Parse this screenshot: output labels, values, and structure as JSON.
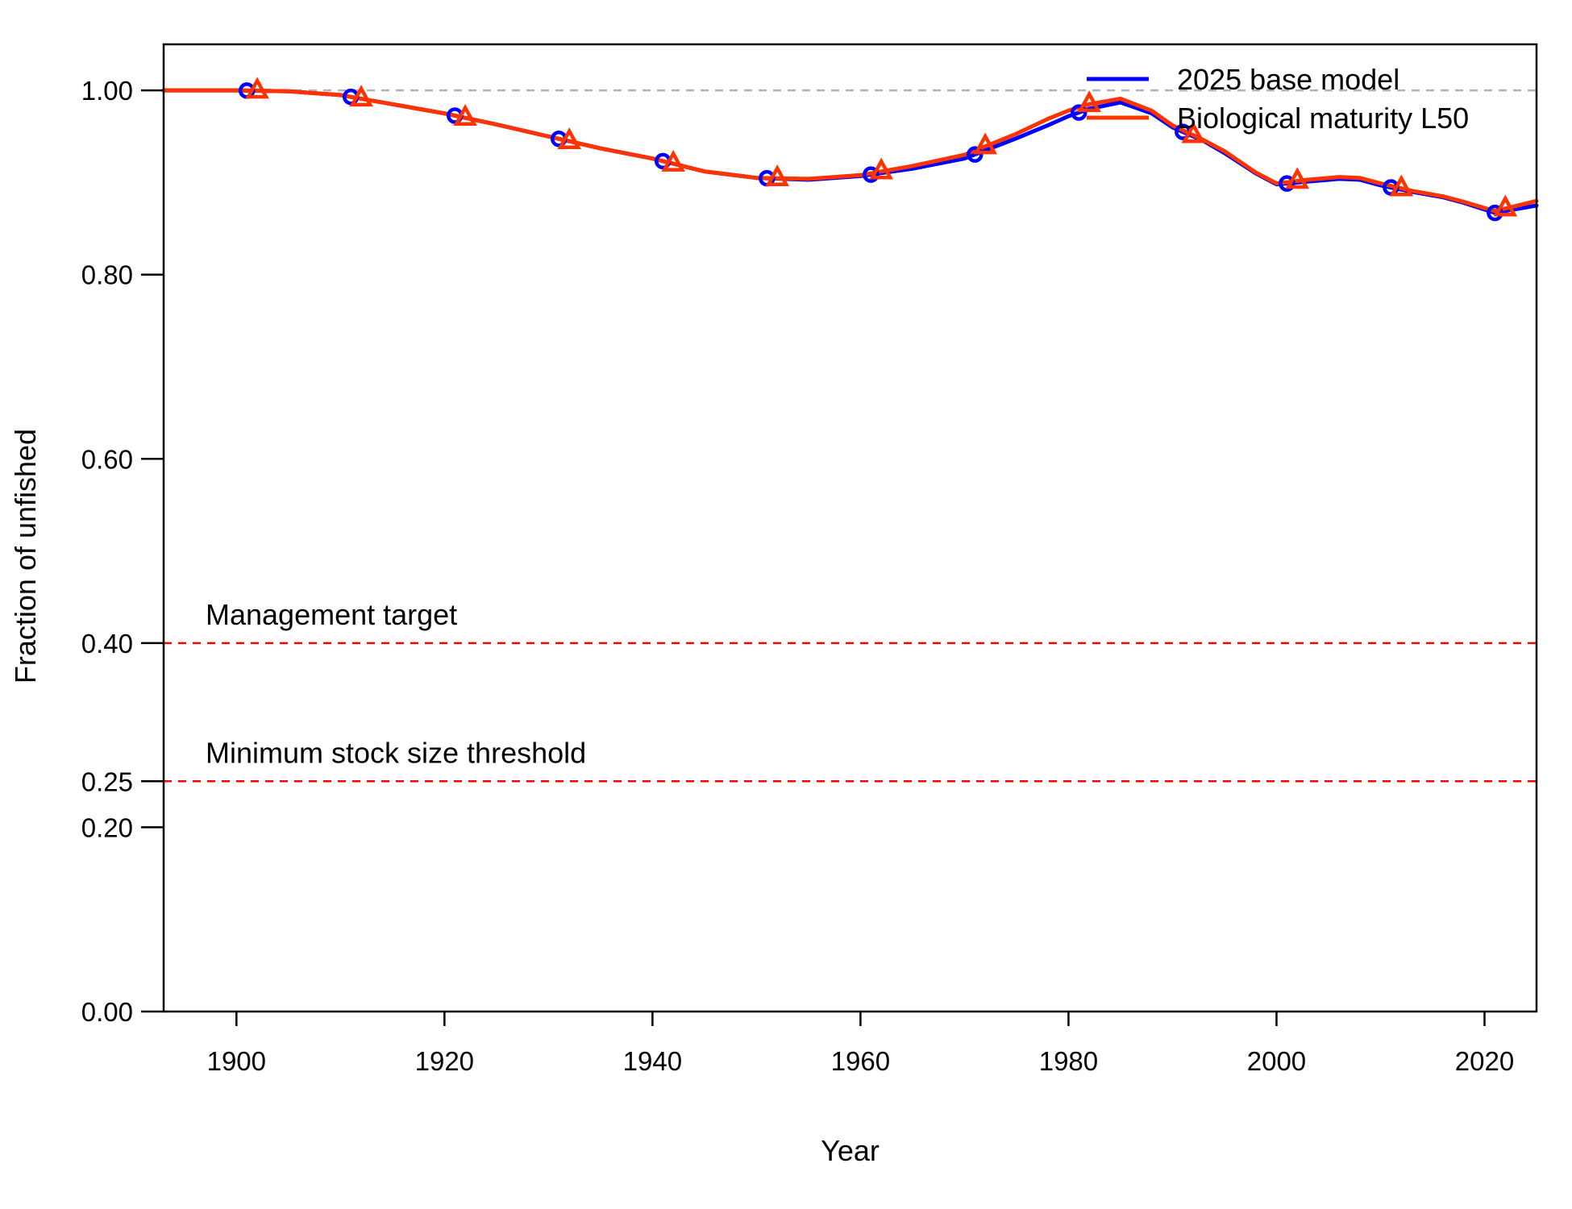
{
  "chart_data": {
    "type": "line",
    "title": "",
    "xlabel": "Year",
    "ylabel": "Fraction of unfished",
    "xlim": [
      1893,
      2025
    ],
    "ylim": [
      0,
      1.05
    ],
    "x_ticks": [
      1900,
      1920,
      1940,
      1960,
      1980,
      2000,
      2020
    ],
    "x_tick_labels": [
      "1900",
      "1920",
      "1940",
      "1960",
      "1980",
      "2000",
      "2020"
    ],
    "y_ticks": [
      0.0,
      0.2,
      0.25,
      0.4,
      0.6,
      0.8,
      1.0
    ],
    "y_tick_labels": [
      "0.00",
      "0.20",
      "0.25",
      "0.40",
      "0.60",
      "0.80",
      "1.00"
    ],
    "grid": false,
    "legend_position": "top-right",
    "reference_lines": [
      {
        "y": 1.0,
        "color": "#b3b3b3",
        "style": "dashed",
        "label": ""
      },
      {
        "y": 0.4,
        "color": "#ff0000",
        "style": "dashed",
        "label": "Management target"
      },
      {
        "y": 0.25,
        "color": "#ff0000",
        "style": "dashed",
        "label": "Minimum stock size threshold"
      }
    ],
    "series": [
      {
        "name": "2025 base model",
        "color": "#0000ff",
        "marker": "circle",
        "marker_x": [
          1901,
          1911,
          1921,
          1931,
          1941,
          1951,
          1961,
          1971,
          1981,
          1991,
          2001,
          2011,
          2021
        ],
        "x": [
          1893,
          1895,
          1900,
          1905,
          1910,
          1915,
          1920,
          1925,
          1930,
          1935,
          1940,
          1945,
          1950,
          1955,
          1960,
          1965,
          1970,
          1975,
          1978,
          1980,
          1982,
          1985,
          1988,
          1990,
          1993,
          1995,
          1998,
          2000,
          2003,
          2006,
          2008,
          2010,
          2013,
          2016,
          2018,
          2021,
          2025
        ],
        "y": [
          1.0,
          1.0,
          1.0,
          0.999,
          0.995,
          0.985,
          0.975,
          0.963,
          0.95,
          0.937,
          0.926,
          0.912,
          0.905,
          0.903,
          0.907,
          0.915,
          0.926,
          0.948,
          0.962,
          0.972,
          0.98,
          0.987,
          0.975,
          0.96,
          0.945,
          0.932,
          0.91,
          0.898,
          0.901,
          0.904,
          0.903,
          0.897,
          0.89,
          0.884,
          0.878,
          0.867,
          0.875
        ]
      },
      {
        "name": "Biological maturity L50",
        "color": "#ff3300",
        "marker": "triangle",
        "marker_x": [
          1902,
          1912,
          1922,
          1932,
          1942,
          1952,
          1962,
          1972,
          1982,
          1992,
          2002,
          2012,
          2022
        ],
        "x": [
          1893,
          1895,
          1900,
          1905,
          1910,
          1915,
          1920,
          1925,
          1930,
          1935,
          1940,
          1945,
          1950,
          1955,
          1960,
          1965,
          1970,
          1975,
          1978,
          1980,
          1982,
          1985,
          1988,
          1990,
          1993,
          1995,
          1998,
          2000,
          2003,
          2006,
          2008,
          2010,
          2013,
          2016,
          2018,
          2021,
          2025
        ],
        "y": [
          1.0,
          1.0,
          1.0,
          0.999,
          0.995,
          0.985,
          0.975,
          0.963,
          0.95,
          0.937,
          0.926,
          0.912,
          0.905,
          0.904,
          0.908,
          0.918,
          0.93,
          0.953,
          0.969,
          0.978,
          0.985,
          0.991,
          0.978,
          0.962,
          0.946,
          0.934,
          0.911,
          0.899,
          0.903,
          0.906,
          0.905,
          0.899,
          0.891,
          0.885,
          0.879,
          0.869,
          0.88
        ]
      }
    ]
  }
}
